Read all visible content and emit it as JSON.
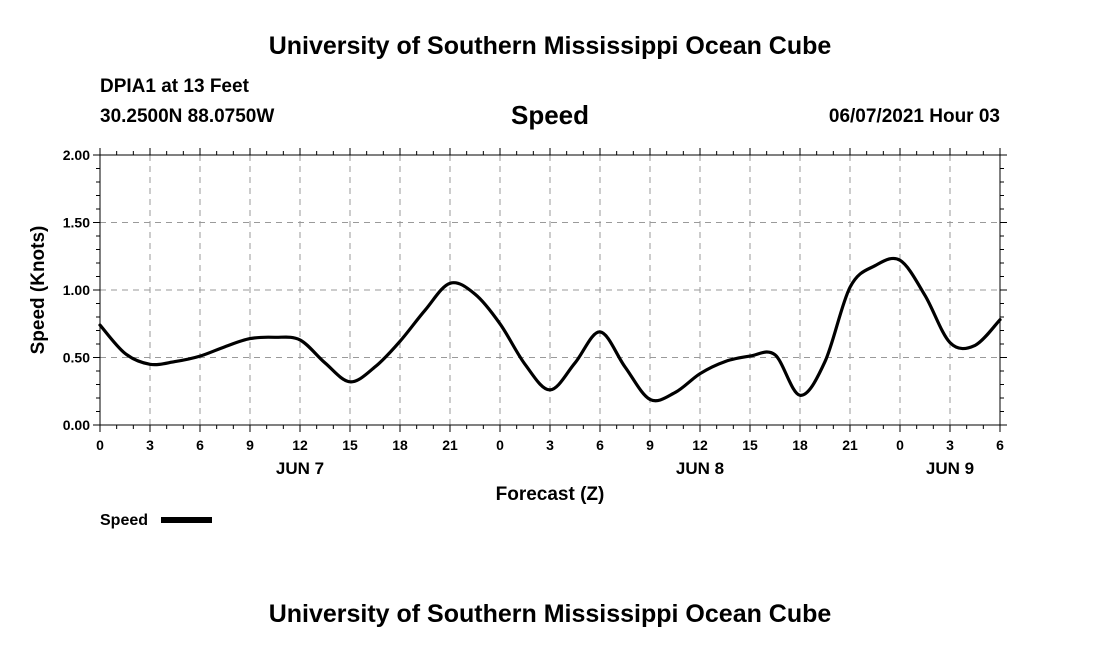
{
  "header": {
    "top_title": "University of Southern Mississippi Ocean Cube",
    "bottom_title": "University of Southern Mississippi Ocean Cube",
    "station": "DPIA1 at 13 Feet",
    "coords": "30.2500N  88.0750W",
    "datetime": "06/07/2021 Hour 03"
  },
  "chart_data": {
    "type": "line",
    "title": "Speed",
    "xlabel": "Forecast (Z)",
    "ylabel": "Speed (Knots)",
    "xlim": [
      0,
      54
    ],
    "ylim": [
      0,
      2
    ],
    "grid": true,
    "legend_position": "bottom-left",
    "yticks": [
      "0.00",
      "0.50",
      "1.00",
      "1.50",
      "2.00"
    ],
    "xticks": [
      "0",
      "3",
      "6",
      "9",
      "12",
      "15",
      "18",
      "21",
      "0",
      "3",
      "6",
      "9",
      "12",
      "15",
      "18",
      "21",
      "0",
      "3",
      "6"
    ],
    "day_labels": [
      {
        "label": "JUN 7",
        "hour": 12
      },
      {
        "label": "JUN 8",
        "hour": 36
      },
      {
        "label": "JUN 9",
        "hour": 51
      }
    ],
    "series": [
      {
        "name": "Speed",
        "color": "#000000",
        "x": [
          0,
          1.5,
          3,
          4.5,
          6,
          7.5,
          9,
          10.5,
          12,
          13.5,
          15,
          16.5,
          18,
          19.5,
          21,
          22.5,
          24,
          25.5,
          27,
          28.5,
          30,
          31.5,
          33,
          34.5,
          36,
          37.5,
          39,
          40.5,
          42,
          43.5,
          45,
          46.5,
          48,
          49.5,
          51,
          52.5,
          54
        ],
        "values": [
          0.74,
          0.53,
          0.45,
          0.47,
          0.51,
          0.58,
          0.64,
          0.65,
          0.63,
          0.46,
          0.32,
          0.43,
          0.62,
          0.85,
          1.05,
          0.97,
          0.75,
          0.45,
          0.26,
          0.46,
          0.69,
          0.43,
          0.19,
          0.24,
          0.38,
          0.47,
          0.51,
          0.52,
          0.22,
          0.47,
          1.02,
          1.18,
          1.22,
          0.96,
          0.61,
          0.59,
          0.78
        ]
      }
    ]
  }
}
